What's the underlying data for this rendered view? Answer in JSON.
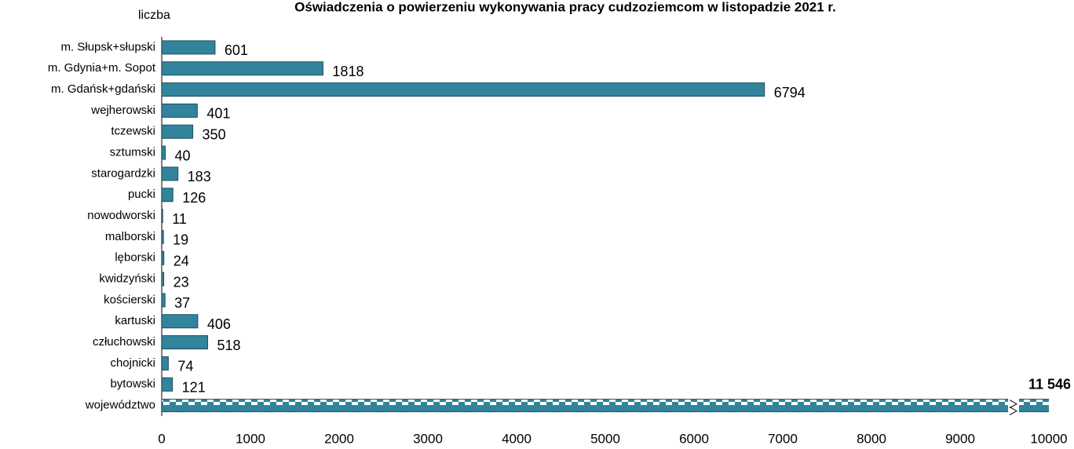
{
  "chart_data": {
    "type": "bar",
    "orientation": "horizontal",
    "title": "Oświadczenia o powierzeniu wykonywania pracy cudzoziemcom w listopadzie 2021 r.",
    "y_axis_label": "liczba",
    "categories": [
      "m. Słupsk+słupski",
      "m. Gdynia+m. Sopot",
      "m. Gdańsk+gdański",
      "wejherowski",
      "tczewski",
      "sztumski",
      "starogardzki",
      "pucki",
      "nowodworski",
      "malborski",
      "lęborski",
      "kwidzyński",
      "kościerski",
      "kartuski",
      "człuchowski",
      "chojnicki",
      "bytowski",
      "województwo"
    ],
    "values": [
      601,
      1818,
      6794,
      401,
      350,
      40,
      183,
      126,
      11,
      19,
      24,
      23,
      37,
      406,
      518,
      74,
      121,
      11546
    ],
    "value_labels": [
      "601",
      "1818",
      "6794",
      "401",
      "350",
      "40",
      "183",
      "126",
      "11",
      "19",
      "24",
      "23",
      "37",
      "406",
      "518",
      "74",
      "121",
      "11 546"
    ],
    "color": "#31849b",
    "xlim": [
      0,
      10000
    ],
    "xticks": [
      0,
      1000,
      2000,
      3000,
      4000,
      5000,
      6000,
      7000,
      8000,
      9000,
      10000
    ]
  }
}
